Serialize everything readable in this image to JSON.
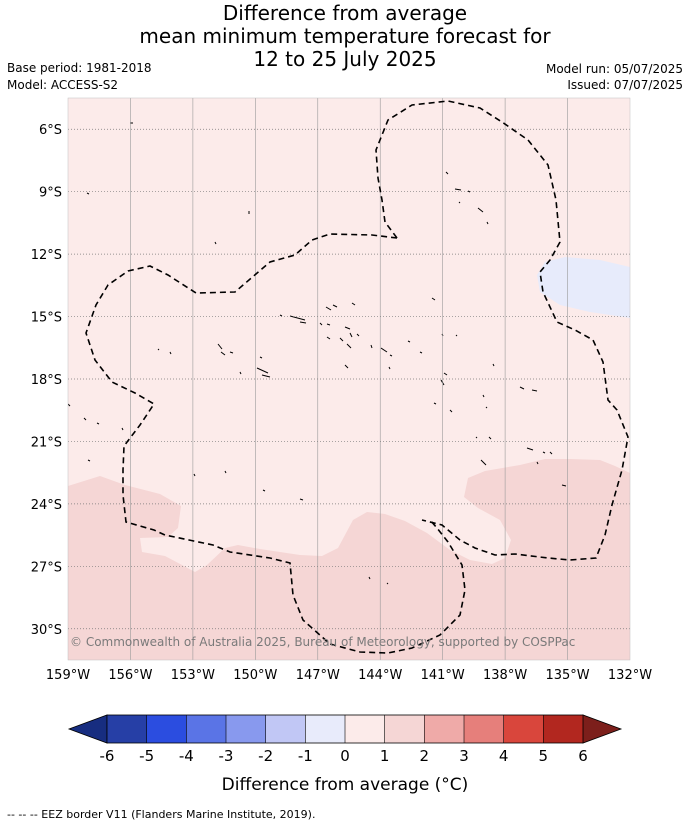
{
  "title_lines": [
    "Difference from average",
    "mean minimum temperature forecast for",
    "12 to 25 July 2025"
  ],
  "meta": {
    "base_period": "Base period: 1981-2018",
    "model": "Model: ACCESS-S2",
    "model_run": "Model run: 05/07/2025",
    "issued": "Issued: 07/07/2025"
  },
  "map": {
    "lon_range": [
      -159,
      -132
    ],
    "lat_range": [
      -31.5,
      -4.5
    ],
    "lon_ticks": [
      "159°W",
      "156°W",
      "153°W",
      "150°W",
      "147°W",
      "144°W",
      "141°W",
      "138°W",
      "135°W",
      "132°W"
    ],
    "lat_ticks": [
      "6°S",
      "9°S",
      "12°S",
      "15°S",
      "18°S",
      "21°S",
      "24°S",
      "27°S",
      "30°S"
    ],
    "gridlines": true,
    "copyright": "© Commonwealth of Australia 2025, Bureau of Meteorology, supported by COSPPac",
    "fill_colors": {
      "zero_to_one": "#fcebea",
      "one_to_two": "#f5d6d5",
      "minus_one_to_zero": "#e7ebfb"
    }
  },
  "colorbar": {
    "ticks": [
      "-6",
      "-5",
      "-4",
      "-3",
      "-2",
      "-1",
      "0",
      "1",
      "2",
      "3",
      "4",
      "5",
      "6"
    ],
    "colors": [
      "#263fa6",
      "#2b4de0",
      "#5a74e6",
      "#8899ee",
      "#c1c7f5",
      "#e8ebfb",
      "#fcebea",
      "#f5d6d5",
      "#efaaa8",
      "#e67f7b",
      "#d9463c",
      "#b2271f"
    ],
    "under_color": "#172d80",
    "over_color": "#7c1f1b",
    "label": "Difference from average (°C)"
  },
  "footnote": "-- -- -- EEZ border V11 (Flanders Marine Institute, 2019)."
}
